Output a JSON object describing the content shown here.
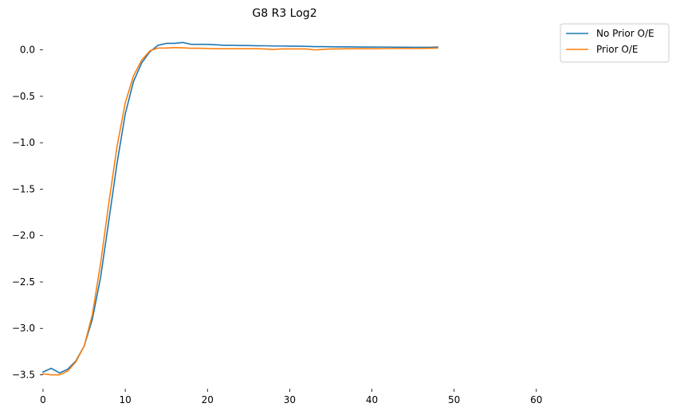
{
  "chart_data": {
    "type": "line",
    "title": "G8 R3 Log2",
    "xlabel": "",
    "ylabel": "",
    "xlim": [
      0,
      67
    ],
    "ylim": [
      -3.65,
      0.28
    ],
    "xticks": [
      0,
      10,
      20,
      30,
      40,
      50,
      60
    ],
    "xtick_labels": [
      "0",
      "10",
      "20",
      "30",
      "40",
      "50",
      "60"
    ],
    "yticks": [
      0.0,
      -0.5,
      -1.0,
      -1.5,
      -2.0,
      -2.5,
      -3.0,
      -3.5
    ],
    "ytick_labels": [
      "0.0",
      "−0.5",
      "−1.0",
      "−1.5",
      "−2.0",
      "−2.5",
      "−3.0",
      "−3.5"
    ],
    "grid": false,
    "legend_position": "upper right, outside plot",
    "x": [
      0,
      1,
      2,
      3,
      4,
      5,
      6,
      7,
      8,
      9,
      10,
      11,
      12,
      13,
      14,
      15,
      16,
      17,
      18,
      19,
      20,
      21,
      22,
      23,
      24,
      25,
      26,
      27,
      28,
      29,
      30,
      31,
      32,
      33,
      34,
      35,
      36,
      37,
      38,
      39,
      40,
      41,
      42,
      43,
      44,
      45,
      46,
      47,
      48
    ],
    "series": [
      {
        "name": "No Prior O/E",
        "color": "#1f77b4",
        "values": [
          -3.47,
          -3.43,
          -3.48,
          -3.44,
          -3.35,
          -3.19,
          -2.9,
          -2.45,
          -1.84,
          -1.22,
          -0.69,
          -0.34,
          -0.14,
          -0.02,
          0.05,
          0.07,
          0.07,
          0.08,
          0.06,
          0.06,
          0.06,
          0.055,
          0.05,
          0.05,
          0.048,
          0.047,
          0.045,
          0.044,
          0.042,
          0.042,
          0.04,
          0.04,
          0.038,
          0.035,
          0.035,
          0.034,
          0.033,
          0.033,
          0.032,
          0.031,
          0.031,
          0.03,
          0.03,
          0.029,
          0.029,
          0.028,
          0.028,
          0.028,
          0.03
        ]
      },
      {
        "name": "Prior O/E",
        "color": "#ff7f0e",
        "values": [
          -3.49,
          -3.5,
          -3.5,
          -3.46,
          -3.36,
          -3.19,
          -2.85,
          -2.3,
          -1.65,
          -1.04,
          -0.57,
          -0.28,
          -0.11,
          -0.01,
          0.02,
          0.02,
          0.025,
          0.022,
          0.018,
          0.018,
          0.015,
          0.012,
          0.012,
          0.012,
          0.012,
          0.012,
          0.012,
          0.01,
          0.005,
          0.01,
          0.01,
          0.01,
          0.01,
          0.0,
          0.005,
          0.01,
          0.01,
          0.012,
          0.012,
          0.012,
          0.012,
          0.013,
          0.015,
          0.015,
          0.015,
          0.015,
          0.015,
          0.018,
          0.02
        ]
      }
    ]
  }
}
